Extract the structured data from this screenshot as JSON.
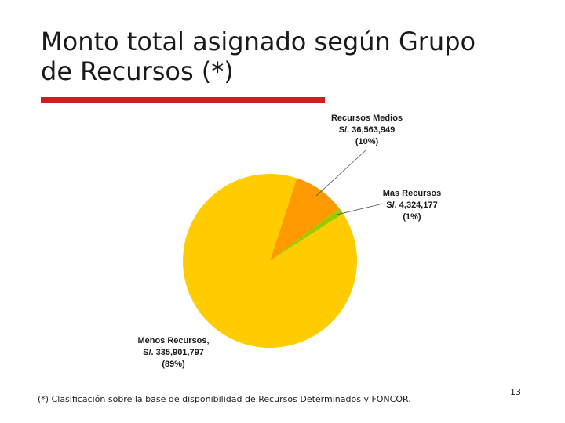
{
  "slide": {
    "title": "Monto total asignado según Grupo\nde Recursos (*)",
    "footnote": "(*) Clasificación sobre la base de disponibilidad de Recursos Determinados y FONCOR.",
    "page_number": "13"
  },
  "colors": {
    "accent_rule": "#cc1f1f",
    "menos": "#ffcc00",
    "medios": "#ff9900",
    "mas": "#99cc00"
  },
  "chart_data": {
    "type": "pie",
    "title": "",
    "slices": [
      {
        "name": "Recursos Medios",
        "value": 36563949,
        "value_label": "S/. 36,563,949",
        "percent_label": "(10%)",
        "color": "#ff9900"
      },
      {
        "name": "Más Recursos",
        "value": 4324177,
        "value_label": "S/. 4,324,177",
        "percent_label": "(1%)",
        "color": "#99cc00"
      },
      {
        "name": "Menos Recursos,",
        "value": 335901797,
        "value_label": "S/. 335,901,797",
        "percent_label": "(89%)",
        "color": "#ffcc00"
      }
    ]
  }
}
